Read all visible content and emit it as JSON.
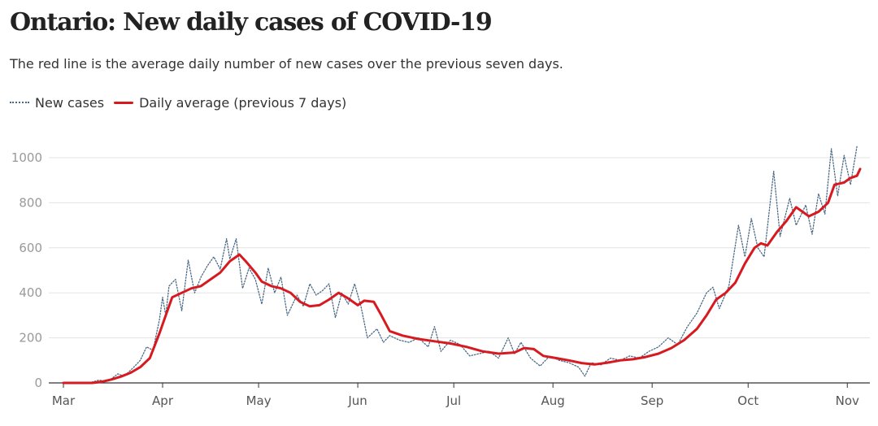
{
  "title": "Ontario: New daily cases of COVID-19",
  "subtitle": "The red line is the average daily number of new cases over the previous seven days.",
  "legend": [
    {
      "label": "New cases",
      "color": "#4a6a86",
      "style": "dotted"
    },
    {
      "label": "Daily average (previous 7 days)",
      "color": "#d71920",
      "style": "solid"
    }
  ],
  "chart_data": {
    "type": "line",
    "x_unit": "day",
    "start_date": "2020-03-01",
    "end_date": "2020-11-05",
    "grid": true,
    "legend_position": "top-left",
    "ylim": [
      0,
      1000
    ],
    "y_ticks": [
      "0",
      "200",
      "400",
      "600",
      "800",
      "1000"
    ],
    "x_ticks": [
      {
        "label": "Mar",
        "date": "2020-03-01"
      },
      {
        "label": "Apr",
        "date": "2020-04-01"
      },
      {
        "label": "May",
        "date": "2020-05-01"
      },
      {
        "label": "Jun",
        "date": "2020-06-01"
      },
      {
        "label": "Jul",
        "date": "2020-07-01"
      },
      {
        "label": "Aug",
        "date": "2020-08-01"
      },
      {
        "label": "Sep",
        "date": "2020-09-01"
      },
      {
        "label": "Oct",
        "date": "2020-10-01"
      },
      {
        "label": "Nov",
        "date": "2020-11-01"
      }
    ],
    "series": [
      {
        "name": "New cases",
        "color": "#4a6a86",
        "style": "dotted",
        "points": [
          [
            "2020-03-01",
            0
          ],
          [
            "2020-03-09",
            0
          ],
          [
            "2020-03-12",
            12
          ],
          [
            "2020-03-15",
            8
          ],
          [
            "2020-03-18",
            40
          ],
          [
            "2020-03-20",
            30
          ],
          [
            "2020-03-23",
            70
          ],
          [
            "2020-03-25",
            100
          ],
          [
            "2020-03-27",
            160
          ],
          [
            "2020-03-29",
            145
          ],
          [
            "2020-03-31",
            280
          ],
          [
            "2020-04-01",
            380
          ],
          [
            "2020-04-02",
            300
          ],
          [
            "2020-04-03",
            430
          ],
          [
            "2020-04-05",
            460
          ],
          [
            "2020-04-07",
            320
          ],
          [
            "2020-04-09",
            545
          ],
          [
            "2020-04-11",
            400
          ],
          [
            "2020-04-13",
            470
          ],
          [
            "2020-04-15",
            520
          ],
          [
            "2020-04-17",
            560
          ],
          [
            "2020-04-19",
            505
          ],
          [
            "2020-04-21",
            640
          ],
          [
            "2020-04-22",
            550
          ],
          [
            "2020-04-24",
            640
          ],
          [
            "2020-04-26",
            420
          ],
          [
            "2020-04-28",
            510
          ],
          [
            "2020-04-30",
            460
          ],
          [
            "2020-05-02",
            350
          ],
          [
            "2020-05-04",
            510
          ],
          [
            "2020-05-06",
            400
          ],
          [
            "2020-05-08",
            470
          ],
          [
            "2020-05-10",
            300
          ],
          [
            "2020-05-13",
            390
          ],
          [
            "2020-05-15",
            340
          ],
          [
            "2020-05-17",
            440
          ],
          [
            "2020-05-19",
            390
          ],
          [
            "2020-05-21",
            410
          ],
          [
            "2020-05-23",
            440
          ],
          [
            "2020-05-25",
            290
          ],
          [
            "2020-05-27",
            400
          ],
          [
            "2020-05-29",
            350
          ],
          [
            "2020-05-31",
            440
          ],
          [
            "2020-06-02",
            340
          ],
          [
            "2020-06-04",
            200
          ],
          [
            "2020-06-07",
            240
          ],
          [
            "2020-06-09",
            180
          ],
          [
            "2020-06-11",
            210
          ],
          [
            "2020-06-14",
            190
          ],
          [
            "2020-06-17",
            180
          ],
          [
            "2020-06-20",
            200
          ],
          [
            "2020-06-23",
            160
          ],
          [
            "2020-06-25",
            250
          ],
          [
            "2020-06-27",
            140
          ],
          [
            "2020-06-30",
            190
          ],
          [
            "2020-07-03",
            170
          ],
          [
            "2020-07-06",
            120
          ],
          [
            "2020-07-09",
            130
          ],
          [
            "2020-07-12",
            140
          ],
          [
            "2020-07-15",
            110
          ],
          [
            "2020-07-18",
            200
          ],
          [
            "2020-07-20",
            130
          ],
          [
            "2020-07-22",
            180
          ],
          [
            "2020-07-25",
            110
          ],
          [
            "2020-07-28",
            75
          ],
          [
            "2020-07-31",
            120
          ],
          [
            "2020-08-03",
            100
          ],
          [
            "2020-08-06",
            90
          ],
          [
            "2020-08-09",
            70
          ],
          [
            "2020-08-11",
            30
          ],
          [
            "2020-08-13",
            90
          ],
          [
            "2020-08-16",
            80
          ],
          [
            "2020-08-19",
            110
          ],
          [
            "2020-08-22",
            100
          ],
          [
            "2020-08-25",
            120
          ],
          [
            "2020-08-28",
            110
          ],
          [
            "2020-08-31",
            140
          ],
          [
            "2020-09-03",
            160
          ],
          [
            "2020-09-06",
            200
          ],
          [
            "2020-09-09",
            170
          ],
          [
            "2020-09-12",
            250
          ],
          [
            "2020-09-15",
            310
          ],
          [
            "2020-09-18",
            400
          ],
          [
            "2020-09-20",
            425
          ],
          [
            "2020-09-22",
            330
          ],
          [
            "2020-09-25",
            430
          ],
          [
            "2020-09-28",
            700
          ],
          [
            "2020-09-30",
            560
          ],
          [
            "2020-10-02",
            730
          ],
          [
            "2020-10-04",
            600
          ],
          [
            "2020-10-06",
            560
          ],
          [
            "2020-10-09",
            940
          ],
          [
            "2020-10-11",
            650
          ],
          [
            "2020-10-14",
            820
          ],
          [
            "2020-10-16",
            700
          ],
          [
            "2020-10-19",
            790
          ],
          [
            "2020-10-21",
            660
          ],
          [
            "2020-10-23",
            840
          ],
          [
            "2020-10-25",
            750
          ],
          [
            "2020-10-27",
            1040
          ],
          [
            "2020-10-29",
            830
          ],
          [
            "2020-10-31",
            1010
          ],
          [
            "2020-11-02",
            880
          ],
          [
            "2020-11-04",
            1050
          ]
        ]
      },
      {
        "name": "Daily average (previous 7 days)",
        "color": "#d71920",
        "style": "solid",
        "points": [
          [
            "2020-03-01",
            0
          ],
          [
            "2020-03-10",
            0
          ],
          [
            "2020-03-13",
            5
          ],
          [
            "2020-03-16",
            15
          ],
          [
            "2020-03-19",
            28
          ],
          [
            "2020-03-22",
            45
          ],
          [
            "2020-03-25",
            70
          ],
          [
            "2020-03-28",
            110
          ],
          [
            "2020-03-31",
            220
          ],
          [
            "2020-04-02",
            300
          ],
          [
            "2020-04-04",
            380
          ],
          [
            "2020-04-07",
            400
          ],
          [
            "2020-04-10",
            420
          ],
          [
            "2020-04-13",
            430
          ],
          [
            "2020-04-16",
            460
          ],
          [
            "2020-04-19",
            490
          ],
          [
            "2020-04-22",
            540
          ],
          [
            "2020-04-25",
            570
          ],
          [
            "2020-04-27",
            540
          ],
          [
            "2020-04-30",
            490
          ],
          [
            "2020-05-02",
            450
          ],
          [
            "2020-05-05",
            430
          ],
          [
            "2020-05-08",
            420
          ],
          [
            "2020-05-11",
            400
          ],
          [
            "2020-05-14",
            360
          ],
          [
            "2020-05-17",
            340
          ],
          [
            "2020-05-20",
            345
          ],
          [
            "2020-05-23",
            370
          ],
          [
            "2020-05-26",
            400
          ],
          [
            "2020-05-29",
            375
          ],
          [
            "2020-06-01",
            345
          ],
          [
            "2020-06-03",
            365
          ],
          [
            "2020-06-06",
            360
          ],
          [
            "2020-06-08",
            310
          ],
          [
            "2020-06-11",
            230
          ],
          [
            "2020-06-15",
            210
          ],
          [
            "2020-06-20",
            195
          ],
          [
            "2020-06-25",
            185
          ],
          [
            "2020-06-30",
            175
          ],
          [
            "2020-07-05",
            160
          ],
          [
            "2020-07-10",
            140
          ],
          [
            "2020-07-15",
            130
          ],
          [
            "2020-07-20",
            135
          ],
          [
            "2020-07-23",
            155
          ],
          [
            "2020-07-26",
            150
          ],
          [
            "2020-07-29",
            120
          ],
          [
            "2020-08-02",
            110
          ],
          [
            "2020-08-06",
            100
          ],
          [
            "2020-08-10",
            88
          ],
          [
            "2020-08-14",
            82
          ],
          [
            "2020-08-18",
            90
          ],
          [
            "2020-08-22",
            100
          ],
          [
            "2020-08-26",
            105
          ],
          [
            "2020-08-30",
            115
          ],
          [
            "2020-09-03",
            130
          ],
          [
            "2020-09-07",
            155
          ],
          [
            "2020-09-11",
            190
          ],
          [
            "2020-09-15",
            240
          ],
          [
            "2020-09-18",
            300
          ],
          [
            "2020-09-21",
            370
          ],
          [
            "2020-09-24",
            400
          ],
          [
            "2020-09-27",
            445
          ],
          [
            "2020-09-30",
            530
          ],
          [
            "2020-10-03",
            600
          ],
          [
            "2020-10-05",
            620
          ],
          [
            "2020-10-07",
            610
          ],
          [
            "2020-10-10",
            670
          ],
          [
            "2020-10-13",
            720
          ],
          [
            "2020-10-16",
            780
          ],
          [
            "2020-10-18",
            760
          ],
          [
            "2020-10-20",
            740
          ],
          [
            "2020-10-23",
            760
          ],
          [
            "2020-10-26",
            800
          ],
          [
            "2020-10-28",
            880
          ],
          [
            "2020-10-31",
            890
          ],
          [
            "2020-11-02",
            910
          ],
          [
            "2020-11-04",
            920
          ],
          [
            "2020-11-05",
            950
          ]
        ]
      }
    ]
  }
}
